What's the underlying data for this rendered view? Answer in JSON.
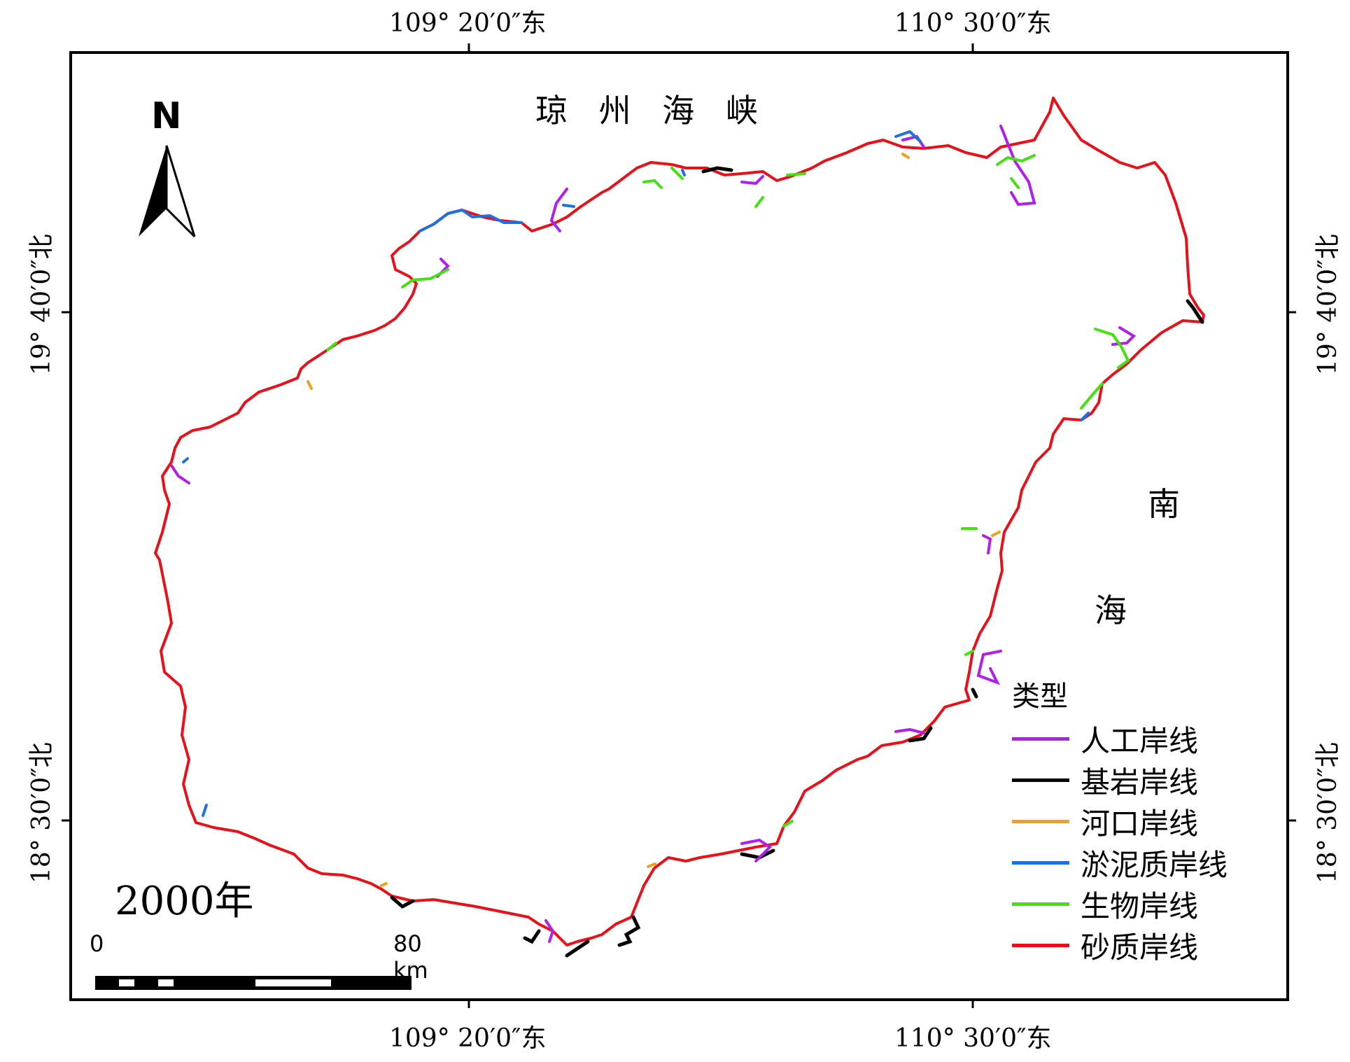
{
  "coordinates": {
    "top": [
      "109° 20′0″东",
      "110° 30′0″东"
    ],
    "bottom": [
      "109° 20′0″东",
      "110° 30′0″东"
    ],
    "left": [
      "19° 40′0″北",
      "18° 30′0″北"
    ],
    "right": [
      "19° 40′0″北",
      "18° 30′0″北"
    ]
  },
  "sea_labels": {
    "strait": "琼 州 海 峡",
    "south_sea_1": "南",
    "south_sea_2": "海"
  },
  "year": "2000年",
  "north_arrow": {
    "label": "N"
  },
  "legend": {
    "title": "类型",
    "items": [
      {
        "label": "人工岸线",
        "color": "#b020e8"
      },
      {
        "label": "基岩岸线",
        "color": "#000000"
      },
      {
        "label": "河口岸线",
        "color": "#f0a020"
      },
      {
        "label": "淤泥质岸线",
        "color": "#1f6fe0"
      },
      {
        "label": "生物岸线",
        "color": "#44e010"
      },
      {
        "label": "砂质岸线",
        "color": "#e8111a"
      }
    ]
  },
  "scale_bar": {
    "start_label": "0",
    "end_label": "80 km"
  },
  "colors": {
    "artificial": "#b020e8",
    "bedrock": "#000000",
    "estuary": "#f0a020",
    "mud": "#1f6fe0",
    "bio": "#44e010",
    "sandy": "#e8111a"
  }
}
